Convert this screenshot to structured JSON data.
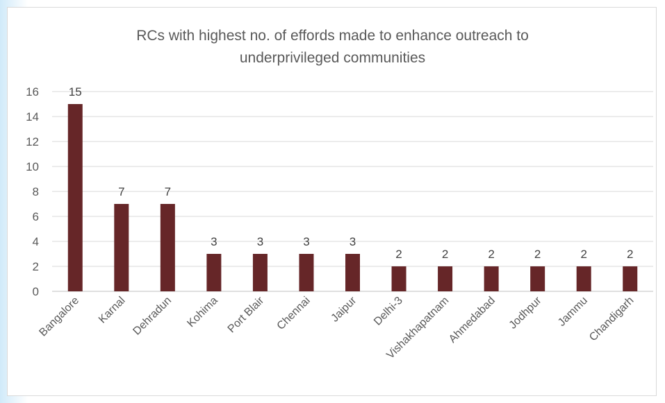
{
  "chart_data": {
    "type": "bar",
    "title_lines": [
      "RCs with highest no. of effords made to enhance outreach to",
      "underprivileged communities"
    ],
    "categories": [
      "Bangalore",
      "Karnal",
      "Dehradun",
      "Kohima",
      "Port Blair",
      "Chennai",
      "Jaipur",
      "Delhi-3",
      "Vishakhapatnam",
      "Ahmedabad",
      "Jodhpur",
      "Jammu",
      "Chandigarh"
    ],
    "values": [
      15,
      7,
      7,
      3,
      3,
      3,
      3,
      2,
      2,
      2,
      2,
      2,
      2
    ],
    "ylim": [
      0,
      16
    ],
    "yticks": [
      0,
      2,
      4,
      6,
      8,
      10,
      12,
      14,
      16
    ],
    "grid": true,
    "bar_color": "#662628",
    "data_labels": true
  }
}
